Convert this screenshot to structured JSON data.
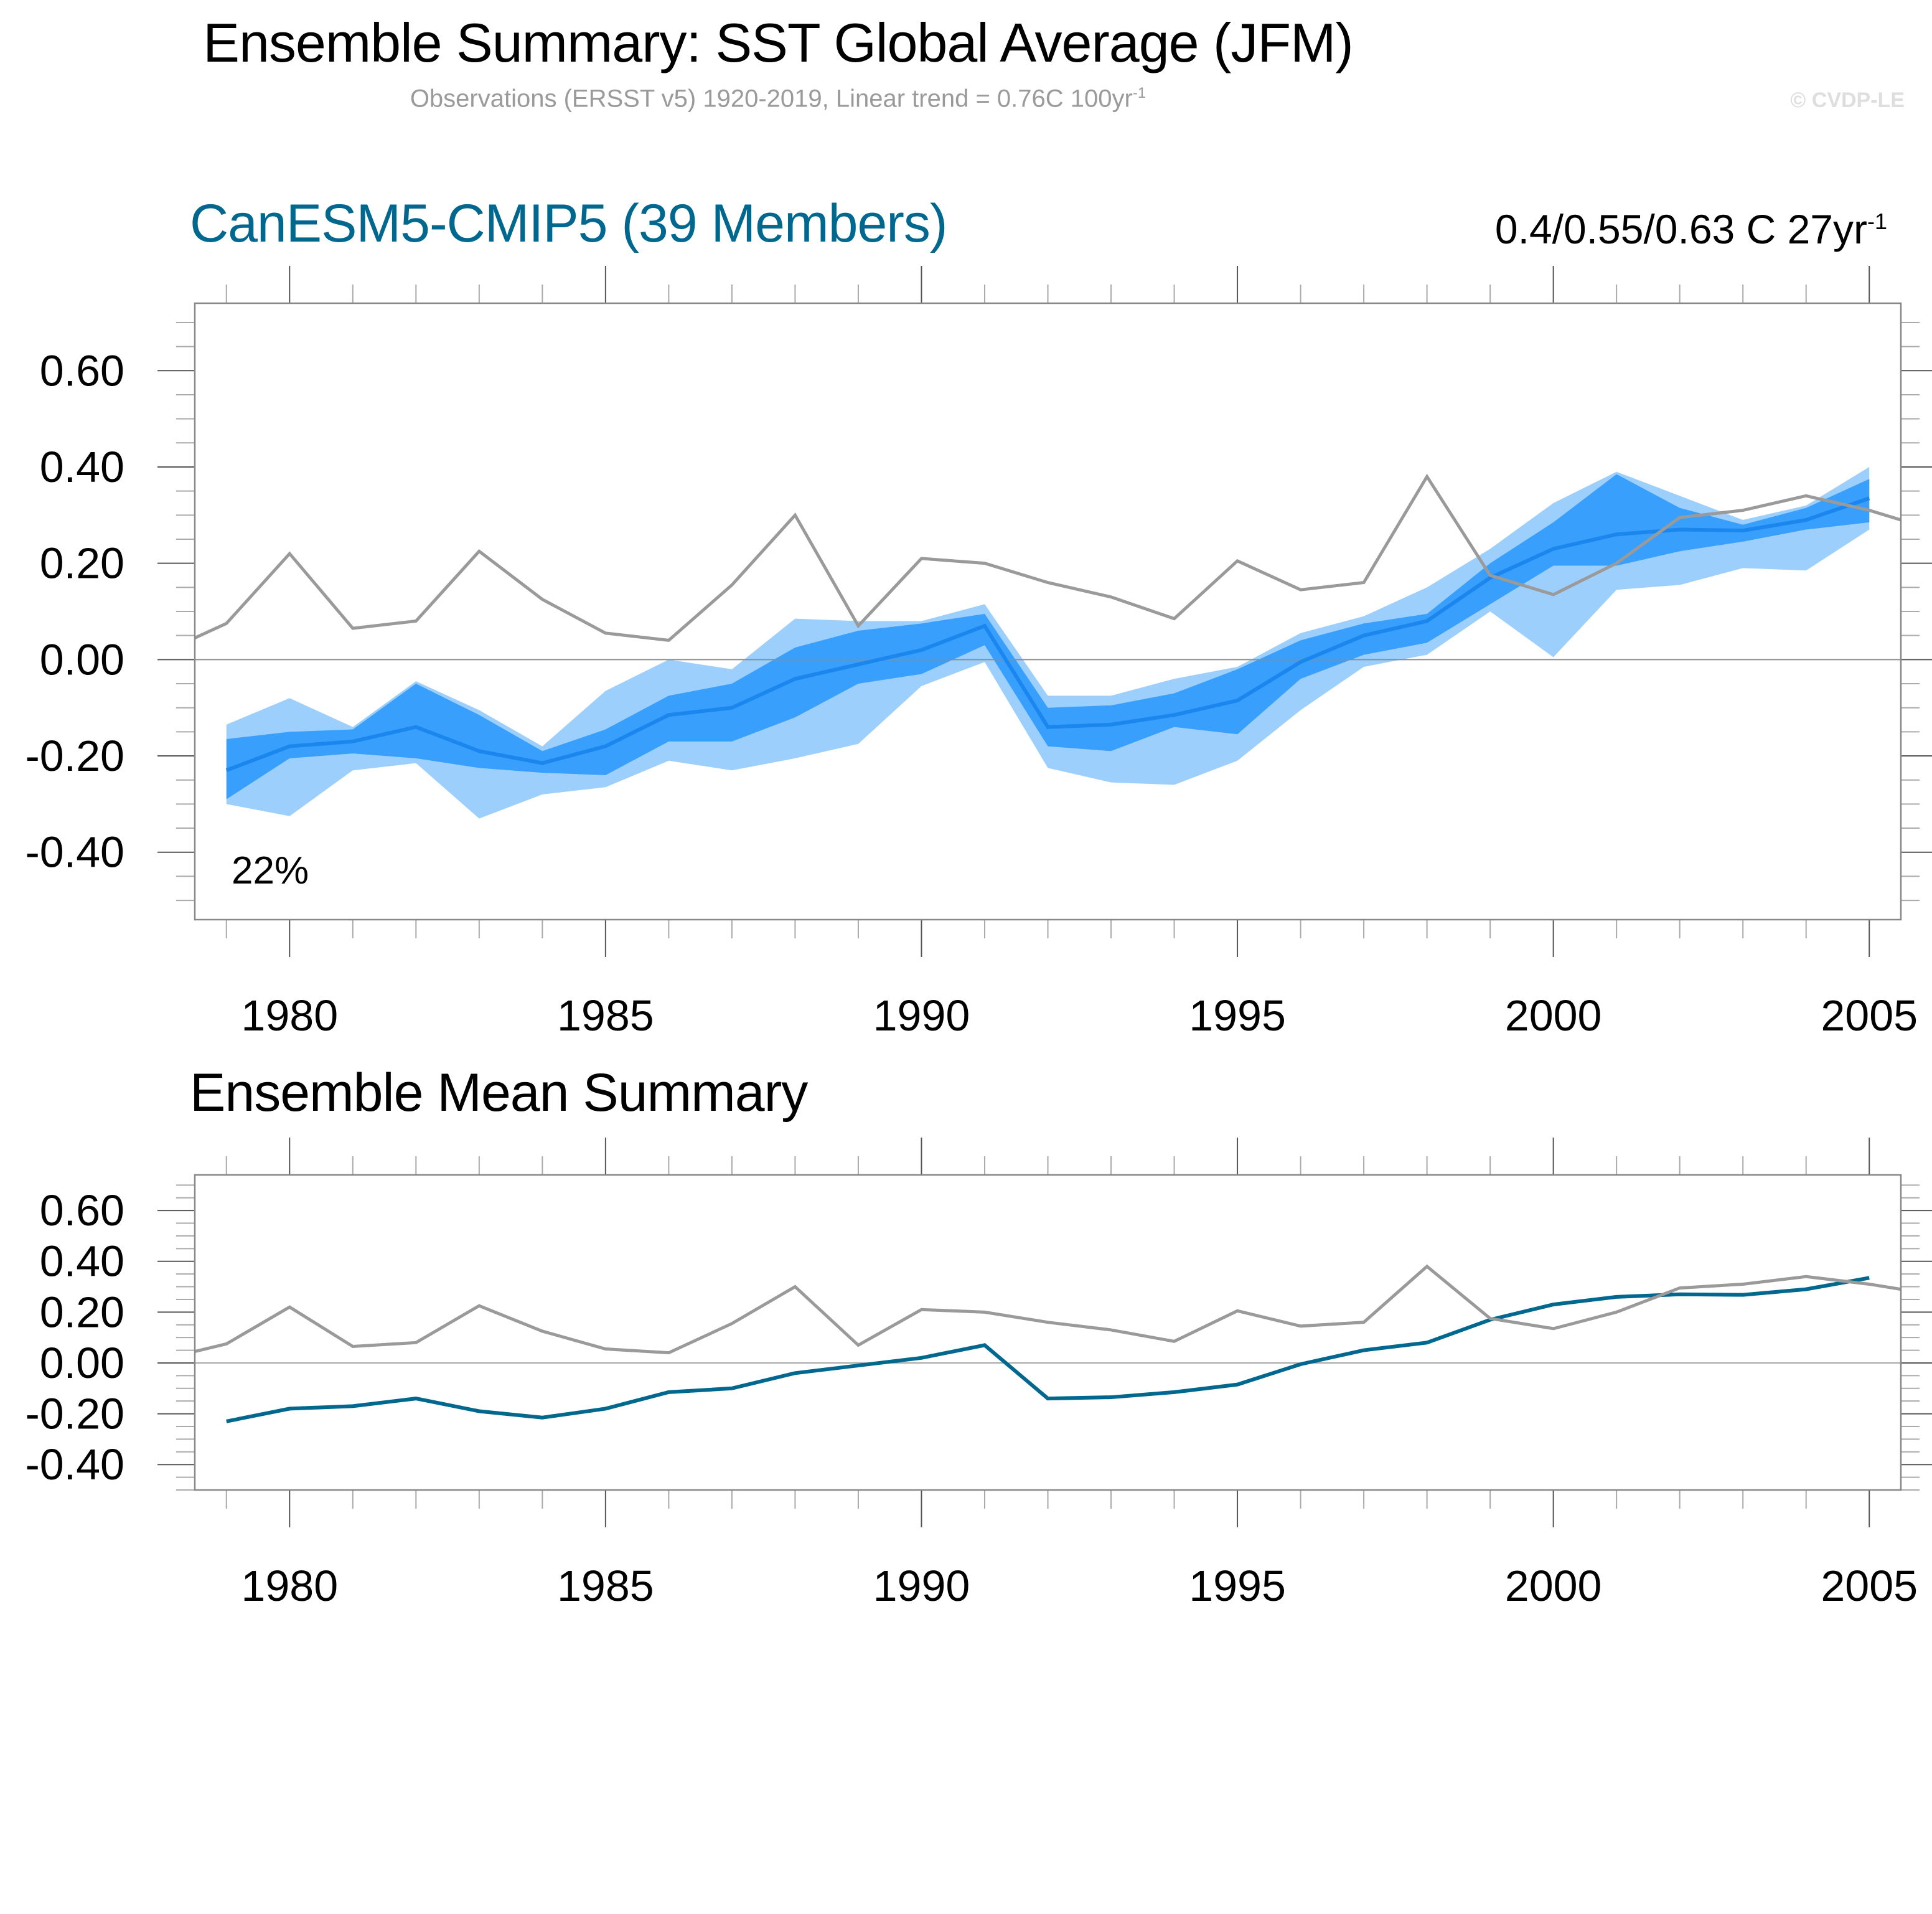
{
  "header": {
    "title": "Ensemble Summary: SST Global Average (JFM)",
    "subtitle": "Observations (ERSST v5) 1920-2019, Linear trend = 0.76C 100yr",
    "subtitle_sup": "-1",
    "copyright": "© CVDP-LE"
  },
  "colors": {
    "outer_band": "#9dcffd",
    "inner_band": "#389ffd",
    "ensemble_mean_top": "#1a86ee",
    "ensemble_mean_bottom": "#00678f",
    "observations": "#9a9a9a",
    "zero_line": "#8c8c8c",
    "model_title": "#00678f"
  },
  "chart_data": [
    {
      "type": "area",
      "id": "ensemble-summary",
      "title": "CanESM5-CMIP5 (39 Members)",
      "annotation_right": "0.4/0.55/0.63 C 27yr",
      "annotation_right_sup": "-1",
      "annotation_bottom_left": "22%",
      "xlabel": "",
      "ylabel": "",
      "xlim": [
        1978.5,
        2005.5
      ],
      "ylim": [
        -0.54,
        0.74
      ],
      "xticks": [
        1980,
        1985,
        1990,
        1995,
        2000,
        2005
      ],
      "yticks": [
        0.6,
        0.4,
        0.2,
        0.0,
        -0.2,
        -0.4
      ],
      "ytick_labels": [
        "0.60",
        "0.40",
        "0.20",
        "0.00",
        "-0.20",
        "-0.40"
      ],
      "grid": false,
      "zero_line": true,
      "years": [
        1979,
        1980,
        1981,
        1982,
        1983,
        1984,
        1985,
        1986,
        1987,
        1988,
        1989,
        1990,
        1991,
        1992,
        1993,
        1994,
        1995,
        1996,
        1997,
        1998,
        1999,
        2000,
        2001,
        2002,
        2003,
        2004,
        2005
      ],
      "series": [
        {
          "name": "Ensemble range (min-max)",
          "kind": "band",
          "lower": [
            -0.3,
            -0.325,
            -0.23,
            -0.215,
            -0.33,
            -0.28,
            -0.265,
            -0.21,
            -0.23,
            -0.205,
            -0.175,
            -0.055,
            -0.005,
            -0.225,
            -0.255,
            -0.26,
            -0.21,
            -0.105,
            -0.015,
            0.01,
            0.1,
            0.005,
            0.145,
            0.155,
            0.19,
            0.185,
            0.27
          ],
          "upper": [
            -0.135,
            -0.08,
            -0.14,
            -0.045,
            -0.105,
            -0.18,
            -0.065,
            0.0,
            -0.02,
            0.085,
            0.08,
            0.08,
            0.115,
            -0.075,
            -0.075,
            -0.04,
            -0.015,
            0.055,
            0.09,
            0.15,
            0.23,
            0.325,
            0.39,
            0.34,
            0.29,
            0.32,
            0.4
          ]
        },
        {
          "name": "Ensemble inner range",
          "kind": "band",
          "lower": [
            -0.29,
            -0.205,
            -0.195,
            -0.205,
            -0.225,
            -0.235,
            -0.24,
            -0.17,
            -0.17,
            -0.12,
            -0.05,
            -0.03,
            0.03,
            -0.18,
            -0.19,
            -0.14,
            -0.155,
            -0.04,
            0.01,
            0.035,
            0.115,
            0.195,
            0.195,
            0.225,
            0.245,
            0.27,
            0.285
          ],
          "upper": [
            -0.165,
            -0.15,
            -0.145,
            -0.05,
            -0.115,
            -0.19,
            -0.145,
            -0.075,
            -0.05,
            0.025,
            0.06,
            0.075,
            0.095,
            -0.1,
            -0.095,
            -0.07,
            -0.02,
            0.04,
            0.075,
            0.095,
            0.2,
            0.285,
            0.385,
            0.315,
            0.28,
            0.315,
            0.375
          ]
        },
        {
          "name": "Ensemble mean",
          "kind": "line",
          "values": [
            -0.23,
            -0.18,
            -0.17,
            -0.14,
            -0.19,
            -0.215,
            -0.18,
            -0.115,
            -0.1,
            -0.04,
            -0.01,
            0.02,
            0.07,
            -0.14,
            -0.135,
            -0.115,
            -0.085,
            -0.005,
            0.05,
            0.08,
            0.17,
            0.23,
            0.26,
            0.27,
            0.268,
            0.29,
            0.335
          ]
        },
        {
          "name": "Observations (ERSST v5)",
          "kind": "line",
          "x": [
            1978.5,
            1979,
            1980,
            1981,
            1982,
            1983,
            1984,
            1985,
            1986,
            1987,
            1988,
            1989,
            1990,
            1991,
            1992,
            1993,
            1994,
            1995,
            1996,
            1997,
            1998,
            1999,
            2000,
            2001,
            2002,
            2003,
            2004,
            2005,
            2005.5
          ],
          "values": [
            0.045,
            0.075,
            0.22,
            0.065,
            0.08,
            0.225,
            0.125,
            0.055,
            0.04,
            0.155,
            0.3,
            0.07,
            0.21,
            0.2,
            0.16,
            0.13,
            0.085,
            0.205,
            0.145,
            0.16,
            0.38,
            0.175,
            0.135,
            0.2,
            0.295,
            0.31,
            0.34,
            0.31,
            0.29
          ]
        }
      ]
    },
    {
      "type": "line",
      "id": "ensemble-mean-summary",
      "title": "Ensemble Mean Summary",
      "xlabel": "",
      "ylabel": "",
      "xlim": [
        1978.5,
        2005.5
      ],
      "ylim": [
        -0.5,
        0.74
      ],
      "xticks": [
        1980,
        1985,
        1990,
        1995,
        2000,
        2005
      ],
      "yticks": [
        0.6,
        0.4,
        0.2,
        0.0,
        -0.2,
        -0.4
      ],
      "ytick_labels": [
        "0.60",
        "0.40",
        "0.20",
        "0.00",
        "-0.20",
        "-0.40"
      ],
      "grid": false,
      "zero_line": true,
      "years": [
        1979,
        1980,
        1981,
        1982,
        1983,
        1984,
        1985,
        1986,
        1987,
        1988,
        1989,
        1990,
        1991,
        1992,
        1993,
        1994,
        1995,
        1996,
        1997,
        1998,
        1999,
        2000,
        2001,
        2002,
        2003,
        2004,
        2005
      ],
      "series": [
        {
          "name": "Ensemble mean",
          "kind": "line",
          "values": [
            -0.23,
            -0.18,
            -0.17,
            -0.14,
            -0.19,
            -0.215,
            -0.18,
            -0.115,
            -0.1,
            -0.04,
            -0.01,
            0.02,
            0.07,
            -0.14,
            -0.135,
            -0.115,
            -0.085,
            -0.005,
            0.05,
            0.08,
            0.17,
            0.23,
            0.26,
            0.27,
            0.268,
            0.29,
            0.335
          ]
        },
        {
          "name": "Observations (ERSST v5)",
          "kind": "line",
          "x": [
            1978.5,
            1979,
            1980,
            1981,
            1982,
            1983,
            1984,
            1985,
            1986,
            1987,
            1988,
            1989,
            1990,
            1991,
            1992,
            1993,
            1994,
            1995,
            1996,
            1997,
            1998,
            1999,
            2000,
            2001,
            2002,
            2003,
            2004,
            2005,
            2005.5
          ],
          "values": [
            0.045,
            0.075,
            0.22,
            0.065,
            0.08,
            0.225,
            0.125,
            0.055,
            0.04,
            0.155,
            0.3,
            0.07,
            0.21,
            0.2,
            0.16,
            0.13,
            0.085,
            0.205,
            0.145,
            0.16,
            0.38,
            0.175,
            0.135,
            0.2,
            0.295,
            0.31,
            0.34,
            0.31,
            0.29
          ]
        }
      ]
    }
  ]
}
